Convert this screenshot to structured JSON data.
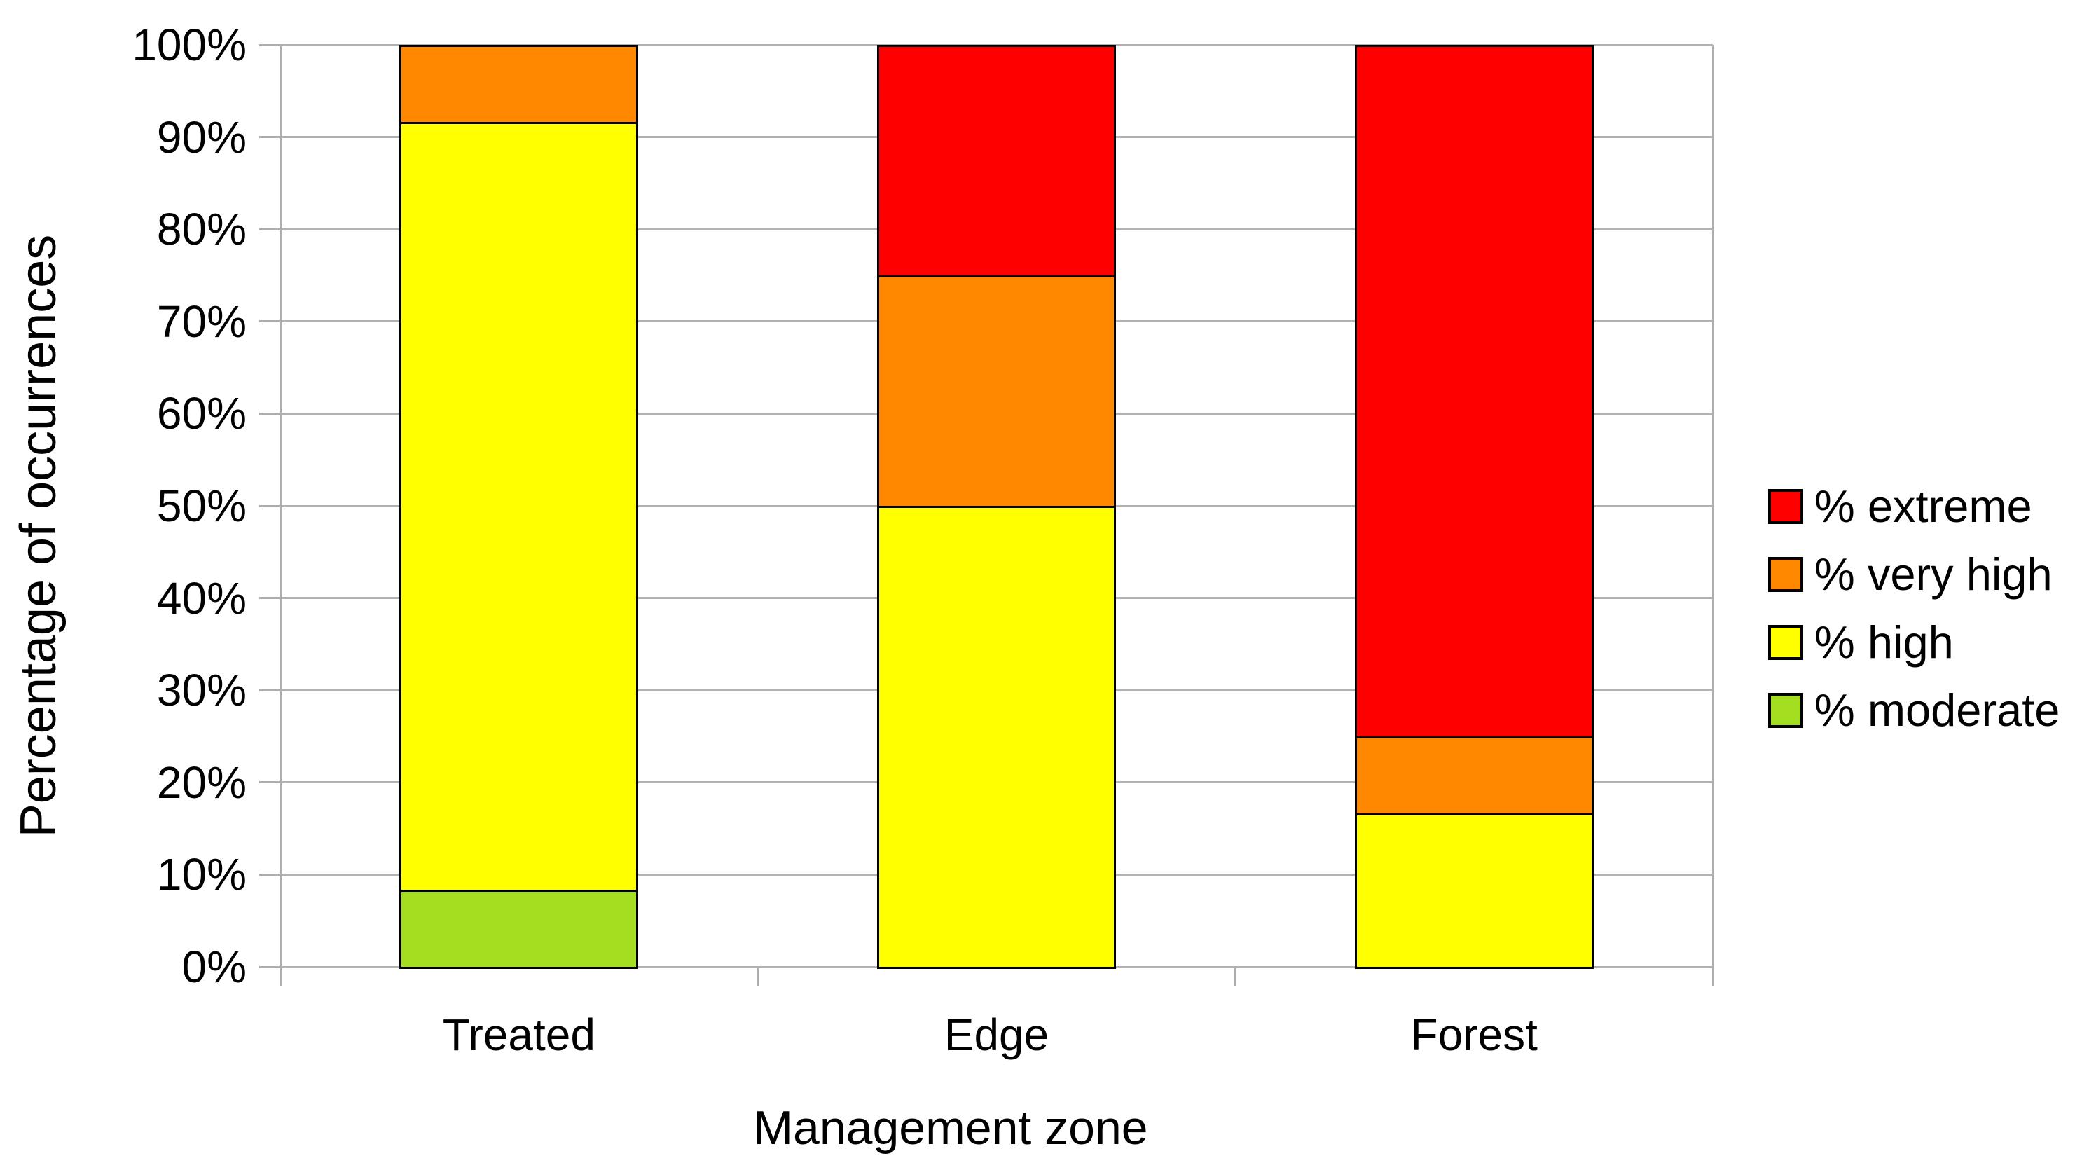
{
  "chart_data": {
    "type": "bar",
    "stacked": true,
    "title": "",
    "categories": [
      "Treated",
      "Edge",
      "Forest"
    ],
    "series": [
      {
        "name": "% moderate",
        "color": "#a3de21",
        "values": [
          8.33,
          0,
          0
        ]
      },
      {
        "name": "% high",
        "color": "#ffff00",
        "values": [
          83.33,
          50,
          16.67
        ]
      },
      {
        "name": "% very high",
        "color": "#ff8800",
        "values": [
          8.34,
          25,
          8.33
        ]
      },
      {
        "name": "% extreme",
        "color": "#ff0000",
        "values": [
          0,
          25,
          75
        ]
      }
    ],
    "legend_order": [
      "% extreme",
      "% very high",
      "% high",
      "% moderate"
    ],
    "legend_position": "right",
    "xlabel": "Management zone",
    "ylabel": "Percentage of occurrences",
    "ylim": [
      0,
      100
    ],
    "ytick_step": 10,
    "ytick_labels": [
      "0%",
      "10%",
      "20%",
      "30%",
      "40%",
      "50%",
      "60%",
      "70%",
      "80%",
      "90%",
      "100%"
    ],
    "grid": "horizontal"
  },
  "colors": {
    "gridline": "#b2b2b2",
    "axis": "#adadad",
    "bar_border": "#000000",
    "text": "#000000",
    "background": "#ffffff"
  }
}
